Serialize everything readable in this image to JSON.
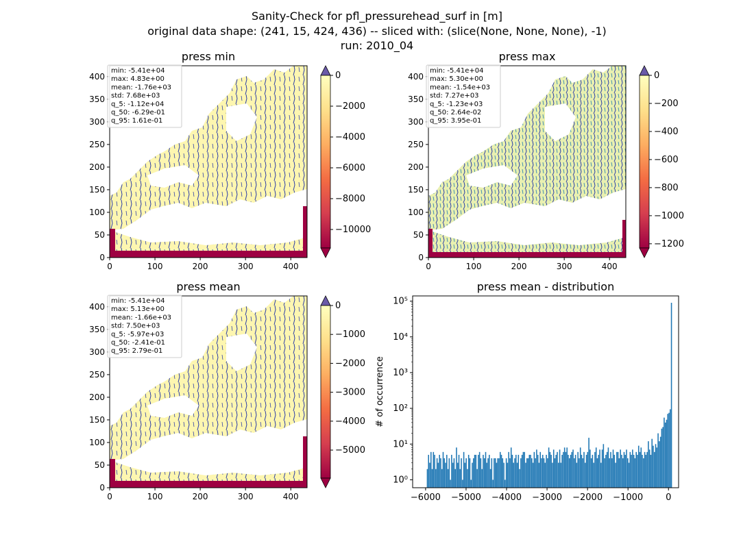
{
  "figure": {
    "title_lines": [
      "Sanity-Check for pfl_pressurehead_surf in [m]",
      "original data shape: (241, 15, 424, 436) -- sliced with: (slice(None, None, None), -1)",
      "run: 2010_04"
    ]
  },
  "maps": [
    {
      "id": "press-min",
      "title": "press min",
      "stats": [
        "min: -5.41e+04",
        "max: 4.83e+00",
        "mean: -1.76e+03",
        "std: 7.68e+03",
        "q_5: -1.12e+04",
        "q_50: -6.29e-01",
        "q_95: 1.61e-01"
      ],
      "x_ticks": [
        "0",
        "100",
        "200",
        "300",
        "400"
      ],
      "y_ticks": [
        "0",
        "50",
        "100",
        "150",
        "200",
        "250",
        "300",
        "350",
        "400"
      ],
      "colorbar_ticks": [
        "0",
        "−2000",
        "−4000",
        "−6000",
        "−8000",
        "−10000"
      ],
      "colorbar_values": [
        0,
        -2000,
        -4000,
        -6000,
        -8000,
        -10000
      ],
      "colorbar_range": [
        -11200,
        0
      ]
    },
    {
      "id": "press-max",
      "title": "press max",
      "stats": [
        "min: -5.41e+04",
        "max: 5.30e+00",
        "mean: -1.54e+03",
        "std: 7.27e+03",
        "q_5: -1.23e+03",
        "q_50: 2.64e-02",
        "q_95: 3.95e-01"
      ],
      "x_ticks": [
        "0",
        "100",
        "200",
        "300",
        "400"
      ],
      "y_ticks": [
        "0",
        "50",
        "100",
        "150",
        "200",
        "250",
        "300",
        "350",
        "400"
      ],
      "colorbar_ticks": [
        "0",
        "−200",
        "−400",
        "−600",
        "−800",
        "−1000",
        "−1200"
      ],
      "colorbar_values": [
        0,
        -200,
        -400,
        -600,
        -800,
        -1000,
        -1200
      ],
      "colorbar_range": [
        -1230,
        0
      ]
    },
    {
      "id": "press-mean",
      "title": "press mean",
      "stats": [
        "min: -5.41e+04",
        "max: 5.13e+00",
        "mean: -1.66e+03",
        "std: 7.50e+03",
        "q_5: -5.97e+03",
        "q_50: -2.41e-01",
        "q_95: 2.79e-01"
      ],
      "x_ticks": [
        "0",
        "100",
        "200",
        "300",
        "400"
      ],
      "y_ticks": [
        "0",
        "50",
        "100",
        "150",
        "200",
        "250",
        "300",
        "350",
        "400"
      ],
      "colorbar_ticks": [
        "0",
        "−1000",
        "−2000",
        "−3000",
        "−4000",
        "−5000"
      ],
      "colorbar_values": [
        0,
        -1000,
        -2000,
        -3000,
        -4000,
        -5000
      ],
      "colorbar_range": [
        -5970,
        0
      ]
    }
  ],
  "colors": {
    "cmap": [
      "#9e0142",
      "#d53e4f",
      "#f46d43",
      "#fdae61",
      "#fee08b",
      "#ffffbf"
    ],
    "over": "#6a5aa8",
    "under": "#9e0142",
    "land": "#fdf6b0",
    "river": "#2b3da8",
    "bar": "#1f77b4"
  },
  "chart_data": {
    "type": "bar",
    "title": "press mean - distribution",
    "xlabel": "",
    "ylabel": "# of occurrence",
    "yscale": "log",
    "xlim": [
      -6320,
      250
    ],
    "ylim": [
      0.6,
      140000
    ],
    "x_ticks": [
      -6000,
      -5000,
      -4000,
      -3000,
      -2000,
      -1000,
      0
    ],
    "x_tick_labels": [
      "−6000",
      "−5000",
      "−4000",
      "−3000",
      "−2000",
      "−1000",
      "0"
    ],
    "y_ticks": [
      1,
      10,
      100,
      1000,
      10000,
      100000
    ],
    "y_tick_labels": [
      "10⁰",
      "10¹",
      "10²",
      "10³",
      "10⁴",
      "10⁵"
    ],
    "bin_start": -5970,
    "bin_width": 30,
    "values": [
      2,
      5,
      3,
      6,
      2,
      6,
      5,
      2,
      4,
      3,
      5,
      4,
      2,
      6,
      4,
      3,
      5,
      2,
      4,
      1,
      5,
      3,
      4,
      2,
      8,
      3,
      5,
      2,
      4,
      1,
      6,
      3,
      4,
      2,
      5,
      4,
      1,
      3,
      4,
      5,
      5,
      2,
      5,
      6,
      4,
      2,
      5,
      4,
      6,
      3,
      4,
      5,
      2,
      4,
      1,
      4,
      4,
      3,
      4,
      4,
      6,
      5,
      4,
      3,
      1,
      4,
      3,
      6,
      4,
      8,
      5,
      3,
      4,
      5,
      3,
      5,
      2,
      4,
      5,
      6,
      6,
      3,
      4,
      4,
      5,
      5,
      4,
      3,
      6,
      4,
      7,
      5,
      3,
      6,
      4,
      5,
      4,
      3,
      5,
      4,
      8,
      6,
      5,
      3,
      7,
      4,
      5,
      6,
      3,
      7,
      3,
      5,
      6,
      8,
      6,
      8,
      5,
      4,
      5,
      6,
      7,
      4,
      5,
      3,
      6,
      4,
      8,
      5,
      4,
      6,
      3,
      5,
      6,
      15,
      7,
      4,
      5,
      3,
      6,
      8,
      4,
      5,
      7,
      3,
      7,
      10,
      4,
      5,
      6,
      8,
      4,
      6,
      4,
      7,
      5,
      3,
      6,
      6,
      4,
      7,
      5,
      4,
      6,
      5,
      7,
      4,
      3,
      6,
      5,
      7,
      5,
      4,
      6,
      5,
      9,
      6,
      8,
      5,
      4,
      6,
      5,
      6,
      12,
      7,
      5,
      14,
      9,
      6,
      10,
      8,
      20,
      12,
      16,
      27,
      30,
      55,
      40,
      48,
      70,
      75,
      94,
      90000
    ]
  }
}
